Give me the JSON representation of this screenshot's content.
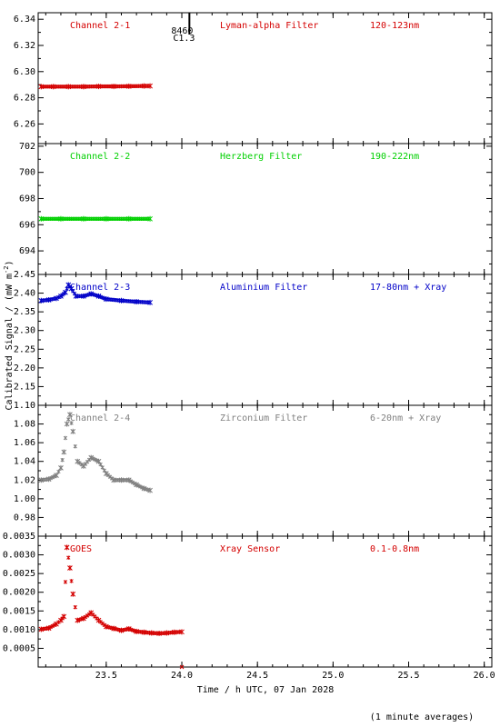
{
  "xlabel": "Time / h UTC, 07 Jan 2028",
  "ylabel": "Calibrated Signal / (mW m",
  "ylabel_sup": "-2",
  "ylabel_close": ")",
  "footnote": "(1 minute averages)",
  "flare_marker": {
    "label_top": "8460",
    "label_bottom": "C1.3",
    "x": 24.05
  },
  "xticks": [
    "23.5",
    "24.0",
    "24.5",
    "25.0",
    "25.5",
    "26.0"
  ],
  "colors": {
    "red": "#d40000",
    "green": "#00d000",
    "blue": "#0000c8",
    "gray": "#808080",
    "black": "#000000"
  },
  "chart_data": [
    {
      "type": "scatter",
      "channel": "Channel 2-1",
      "filter": "Lyman-alpha Filter",
      "band": "120-123nm",
      "color": "#d40000",
      "xlim": [
        23.05,
        26.05
      ],
      "ylim": [
        6.245,
        6.345
      ],
      "yticks": [
        "6.26",
        "6.28",
        "6.30",
        "6.32",
        "6.34"
      ],
      "series": {
        "x": [
          23.07,
          23.15,
          23.25,
          23.35,
          23.45,
          23.55,
          23.65,
          23.75,
          23.79
        ],
        "y": [
          6.2885,
          6.2885,
          6.2885,
          6.2885,
          6.2887,
          6.2887,
          6.2888,
          6.289,
          6.289
        ]
      }
    },
    {
      "type": "scatter",
      "channel": "Channel 2-2",
      "filter": "Herzberg Filter",
      "band": "190-222nm",
      "color": "#00d000",
      "xlim": [
        23.05,
        26.05
      ],
      "ylim": [
        692.2,
        702.2
      ],
      "yticks": [
        "694",
        "696",
        "698",
        "700",
        "702"
      ],
      "series": {
        "x": [
          23.07,
          23.2,
          23.35,
          23.5,
          23.65,
          23.79
        ],
        "y": [
          696.45,
          696.45,
          696.45,
          696.45,
          696.45,
          696.45
        ]
      }
    },
    {
      "type": "scatter",
      "channel": "Channel 2-3",
      "filter": "Aluminium Filter",
      "band": "17-80nm + Xray",
      "color": "#0000c8",
      "xlim": [
        23.05,
        26.05
      ],
      "ylim": [
        2.1,
        2.45
      ],
      "yticks": [
        "2.15",
        "2.20",
        "2.25",
        "2.30",
        "2.35",
        "2.40",
        "2.45"
      ],
      "series": {
        "x": [
          23.07,
          23.12,
          23.17,
          23.2,
          23.23,
          23.25,
          23.27,
          23.3,
          23.35,
          23.4,
          23.45,
          23.5,
          23.6,
          23.7,
          23.79
        ],
        "y": [
          2.38,
          2.382,
          2.386,
          2.392,
          2.402,
          2.422,
          2.412,
          2.392,
          2.392,
          2.398,
          2.392,
          2.384,
          2.38,
          2.377,
          2.375
        ]
      }
    },
    {
      "type": "scatter",
      "channel": "Channel 2-4",
      "filter": "Zirconium Filter",
      "band": "6-20nm + Xray",
      "color": "#808080",
      "xlim": [
        23.05,
        26.05
      ],
      "ylim": [
        0.96,
        1.1
      ],
      "yticks": [
        "0.98",
        "1.00",
        "1.02",
        "1.04",
        "1.06",
        "1.08",
        "1.10"
      ],
      "series": {
        "x": [
          23.07,
          23.12,
          23.17,
          23.2,
          23.22,
          23.24,
          23.26,
          23.28,
          23.31,
          23.35,
          23.4,
          23.45,
          23.5,
          23.55,
          23.6,
          23.65,
          23.7,
          23.75,
          23.79
        ],
        "y": [
          1.02,
          1.021,
          1.025,
          1.033,
          1.05,
          1.08,
          1.09,
          1.072,
          1.04,
          1.035,
          1.044,
          1.04,
          1.027,
          1.02,
          1.02,
          1.02,
          1.015,
          1.011,
          1.009
        ]
      }
    },
    {
      "type": "scatter",
      "channel": "GOES",
      "filter": "Xray Sensor",
      "band": "0.1-0.8nm",
      "color": "#d40000",
      "xlim": [
        23.05,
        26.05
      ],
      "ylim": [
        0.0,
        0.0035
      ],
      "yticks": [
        "0.0005",
        "0.0010",
        "0.0015",
        "0.0020",
        "0.0025",
        "0.0030",
        "0.0035"
      ],
      "series": {
        "x": [
          23.07,
          23.12,
          23.17,
          23.2,
          23.22,
          23.24,
          23.26,
          23.28,
          23.31,
          23.35,
          23.4,
          23.45,
          23.5,
          23.55,
          23.6,
          23.65,
          23.7,
          23.75,
          23.8,
          23.85,
          23.9,
          23.95,
          24.0
        ],
        "y": [
          0.00101,
          0.00104,
          0.00115,
          0.00125,
          0.00135,
          0.0032,
          0.00265,
          0.00195,
          0.00125,
          0.0013,
          0.00145,
          0.00125,
          0.00108,
          0.00103,
          0.00098,
          0.00102,
          0.00095,
          0.00093,
          0.00091,
          0.0009,
          0.00091,
          0.00093,
          0.00094
        ]
      }
    }
  ]
}
